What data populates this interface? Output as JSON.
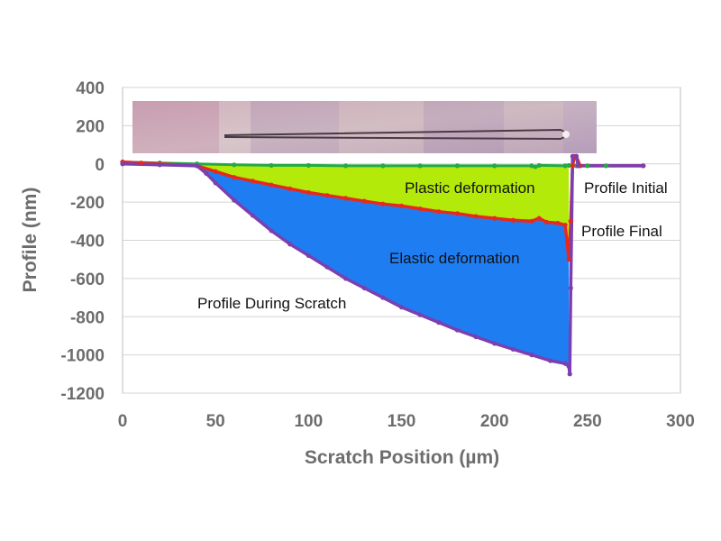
{
  "chart_data": {
    "type": "line",
    "xlabel": "Scratch Position (µm)",
    "ylabel": "Profile (nm)",
    "xlim": [
      0,
      300
    ],
    "ylim": [
      -1200,
      400
    ],
    "x_ticks": [
      "0",
      "50",
      "100",
      "150",
      "200",
      "250",
      "300"
    ],
    "y_ticks": [
      "400",
      "200",
      "0",
      "-200",
      "-400",
      "-600",
      "-800",
      "-1000",
      "-1200"
    ],
    "grid": "horizontal",
    "legend": "none",
    "series": [
      {
        "key": "initial",
        "label": "Profile Initial",
        "color": "#22aa44",
        "points": [
          [
            0,
            10
          ],
          [
            20,
            5
          ],
          [
            40,
            0
          ],
          [
            60,
            -5
          ],
          [
            80,
            -8
          ],
          [
            100,
            -8
          ],
          [
            120,
            -10
          ],
          [
            140,
            -10
          ],
          [
            160,
            -10
          ],
          [
            180,
            -10
          ],
          [
            200,
            -10
          ],
          [
            220,
            -10
          ],
          [
            222,
            -15
          ],
          [
            224,
            -8
          ],
          [
            238,
            -10
          ],
          [
            240,
            -8
          ],
          [
            244,
            -10
          ],
          [
            250,
            -10
          ],
          [
            260,
            -10
          ],
          [
            280,
            -10
          ]
        ]
      },
      {
        "key": "final",
        "label": "Profile Final",
        "color": "#e8281e",
        "points": [
          [
            0,
            10
          ],
          [
            10,
            5
          ],
          [
            20,
            0
          ],
          [
            40,
            -10
          ],
          [
            50,
            -40
          ],
          [
            60,
            -70
          ],
          [
            70,
            -90
          ],
          [
            80,
            -110
          ],
          [
            90,
            -130
          ],
          [
            100,
            -150
          ],
          [
            110,
            -165
          ],
          [
            120,
            -180
          ],
          [
            130,
            -195
          ],
          [
            140,
            -210
          ],
          [
            150,
            -220
          ],
          [
            160,
            -235
          ],
          [
            170,
            -250
          ],
          [
            180,
            -260
          ],
          [
            190,
            -275
          ],
          [
            200,
            -285
          ],
          [
            210,
            -295
          ],
          [
            220,
            -300
          ],
          [
            224,
            -285
          ],
          [
            228,
            -305
          ],
          [
            234,
            -310
          ],
          [
            238,
            -320
          ],
          [
            240,
            -500
          ],
          [
            241,
            -300
          ],
          [
            242,
            -10
          ],
          [
            243,
            40
          ],
          [
            244,
            40
          ],
          [
            246,
            -10
          ],
          [
            280,
            -10
          ]
        ]
      },
      {
        "key": "during",
        "label": "Profile During Scratch",
        "color": "#7a3fb0",
        "points": [
          [
            0,
            0
          ],
          [
            20,
            -5
          ],
          [
            40,
            -10
          ],
          [
            45,
            -50
          ],
          [
            50,
            -100
          ],
          [
            60,
            -190
          ],
          [
            70,
            -270
          ],
          [
            80,
            -350
          ],
          [
            90,
            -420
          ],
          [
            100,
            -480
          ],
          [
            110,
            -540
          ],
          [
            120,
            -600
          ],
          [
            130,
            -650
          ],
          [
            140,
            -700
          ],
          [
            150,
            -750
          ],
          [
            160,
            -790
          ],
          [
            170,
            -830
          ],
          [
            180,
            -870
          ],
          [
            190,
            -905
          ],
          [
            200,
            -940
          ],
          [
            210,
            -970
          ],
          [
            220,
            -1000
          ],
          [
            230,
            -1030
          ],
          [
            238,
            -1045
          ],
          [
            240,
            -1060
          ],
          [
            240.5,
            -1100
          ],
          [
            241,
            -650
          ],
          [
            242,
            40
          ],
          [
            244,
            40
          ],
          [
            245,
            -10
          ],
          [
            280,
            -10
          ]
        ]
      }
    ],
    "regions": [
      {
        "label": "Plastic deformation",
        "color": "#b4ea0a",
        "between": [
          "initial",
          "final"
        ]
      },
      {
        "label": "Elastic deformation",
        "color": "#1f7df2",
        "between": [
          "final",
          "during"
        ]
      }
    ]
  },
  "inset": {
    "name": "scratch micrograph",
    "colors": [
      "#c89eb0",
      "#d7c4c8",
      "#bca4b8",
      "#cdb6be",
      "#b49ab4",
      "#c7aeba",
      "#b8a0bc"
    ],
    "groove_color": "#4a3a44"
  }
}
